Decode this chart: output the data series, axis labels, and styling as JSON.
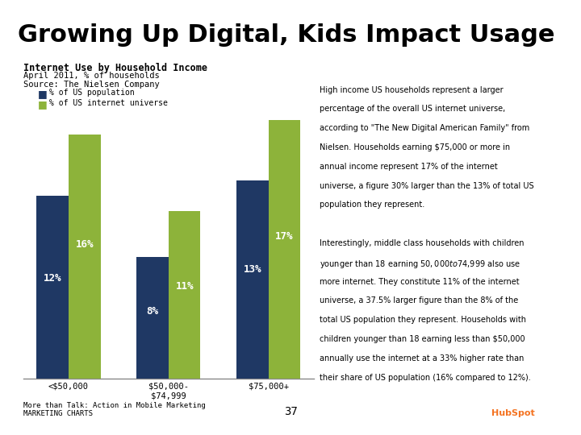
{
  "title": "Growing Up Digital, Kids Impact Usage",
  "chart_title": "Internet Use by Household Income",
  "chart_subtitle": "April 2011, % of households",
  "chart_source": "Source: The Nielsen Company",
  "categories": [
    "<$50,000",
    "$50,000-\n$74,999",
    "$75,000+"
  ],
  "series": [
    {
      "name": "% of US population",
      "values": [
        12,
        8,
        13
      ],
      "color": "#1f3864"
    },
    {
      "name": "% of US internet universe",
      "values": [
        16,
        11,
        17
      ],
      "color": "#8db33a"
    }
  ],
  "bar_width": 0.32,
  "ylim": [
    0,
    20
  ],
  "title_bg_color": "#b0b0b0",
  "title_font_color": "#000000",
  "title_fontsize": 22,
  "chart_bg_color": "#ffffff",
  "annotation_text": "High income US households represent a larger\npercentage of the overall US internet universe,\naccording to \"The New Digital American Family\" from\nNielsen. Households earning $75,000 or more in\nannual income represent 17% of the internet\nuniverse, a figure 30% larger than the 13% of total US\npopulation they represent.\n\nInterestingly, middle class households with children\nyounger than 18 earning $50,000 to $74,999 also use\nmore internet. They constitute 11% of the internet\nuniverse, a 37.5% larger figure than the 8% of the\ntotal US population they represent. Households with\nchildren younger than 18 earning less than $50,000\nannually use the internet at a 33% higher rate than\ntheir share of US population (16% compared to 12%).",
  "footer_left": "More than Talk: Action in Mobile Marketing\nMARKETING CHARTS",
  "footer_page": "37",
  "navy_color": "#1f3864",
  "green_color": "#8db33a"
}
